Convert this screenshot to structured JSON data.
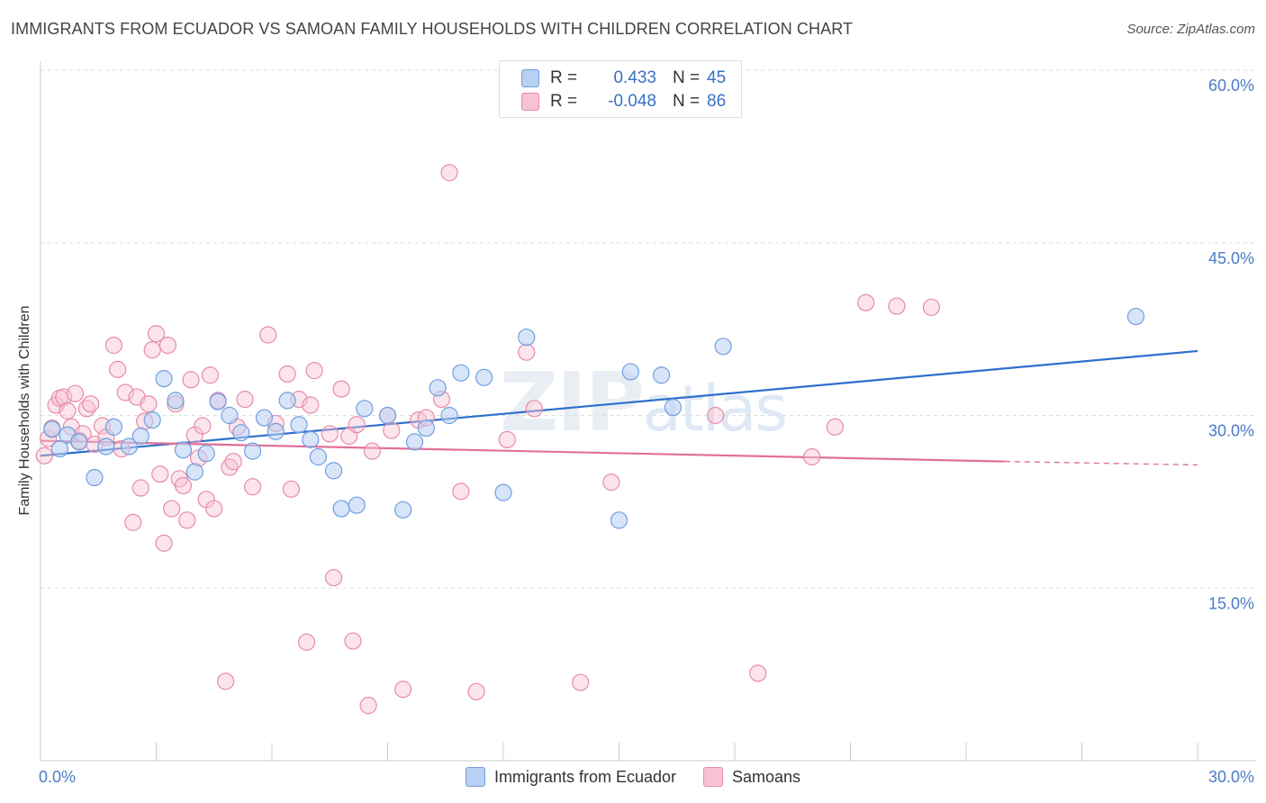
{
  "header": {
    "title": "IMMIGRANTS FROM ECUADOR VS SAMOAN FAMILY HOUSEHOLDS WITH CHILDREN CORRELATION CHART",
    "source": "Source: ZipAtlas.com"
  },
  "watermark": {
    "zip": "ZIP",
    "atlas": "atlas"
  },
  "legend": {
    "rows": [
      {
        "r_label": "R =",
        "r_value": "0.433",
        "n_label": "N =",
        "n_value": "45"
      },
      {
        "r_label": "R =",
        "r_value": "-0.048",
        "n_label": "N =",
        "n_value": "86"
      }
    ]
  },
  "bottom_legend": {
    "series1": "Immigrants from Ecuador",
    "series2": "Samoans"
  },
  "colors": {
    "blue_fill": "#b8d0f2",
    "blue_stroke": "#6f9fe0",
    "blue_line": "#2f6fcc",
    "pink_fill": "#f7c3d4",
    "pink_stroke": "#e98aab",
    "pink_line": "#e07098",
    "axis_label": "#4a7cc7",
    "grid": "#dddddd"
  },
  "chart_data": {
    "type": "scatter",
    "title": "IMMIGRANTS FROM ECUADOR VS SAMOAN FAMILY HOUSEHOLDS WITH CHILDREN CORRELATION CHART",
    "xlabel": "",
    "ylabel": "Family Households with Children",
    "xlim": [
      0,
      30
    ],
    "ylim": [
      0,
      60
    ],
    "x_tick_labels": [
      "0.0%",
      "30.0%"
    ],
    "y_ticks": [
      15,
      30,
      45,
      60
    ],
    "y_tick_labels": [
      "15.0%",
      "30.0%",
      "45.0%",
      "60.0%"
    ],
    "grid": true,
    "legend_position": "top-center",
    "series": [
      {
        "name": "Immigrants from Ecuador",
        "trend": {
          "x": [
            0,
            30
          ],
          "y": [
            26.5,
            35.6
          ]
        },
        "points": [
          [
            0.3,
            28.8
          ],
          [
            0.5,
            27.1
          ],
          [
            0.7,
            28.3
          ],
          [
            1.0,
            27.7
          ],
          [
            1.4,
            24.6
          ],
          [
            1.7,
            27.3
          ],
          [
            1.9,
            29.0
          ],
          [
            2.3,
            27.3
          ],
          [
            2.6,
            28.2
          ],
          [
            2.9,
            29.6
          ],
          [
            3.2,
            33.2
          ],
          [
            3.5,
            31.3
          ],
          [
            3.7,
            27.0
          ],
          [
            4.0,
            25.1
          ],
          [
            4.3,
            26.7
          ],
          [
            4.6,
            31.2
          ],
          [
            4.9,
            30.0
          ],
          [
            5.2,
            28.5
          ],
          [
            5.5,
            26.9
          ],
          [
            5.8,
            29.8
          ],
          [
            6.1,
            28.6
          ],
          [
            6.4,
            31.3
          ],
          [
            6.7,
            29.2
          ],
          [
            7.0,
            27.9
          ],
          [
            7.2,
            26.4
          ],
          [
            7.6,
            25.2
          ],
          [
            7.8,
            21.9
          ],
          [
            8.2,
            22.2
          ],
          [
            8.4,
            30.6
          ],
          [
            9.0,
            30.0
          ],
          [
            9.4,
            21.8
          ],
          [
            9.7,
            27.7
          ],
          [
            10.0,
            28.9
          ],
          [
            10.3,
            32.4
          ],
          [
            10.6,
            30.0
          ],
          [
            10.9,
            33.7
          ],
          [
            11.5,
            33.3
          ],
          [
            12.0,
            23.3
          ],
          [
            12.6,
            36.8
          ],
          [
            15.0,
            20.9
          ],
          [
            15.3,
            33.8
          ],
          [
            16.1,
            33.5
          ],
          [
            16.4,
            30.7
          ],
          [
            17.7,
            36.0
          ],
          [
            28.4,
            38.6
          ]
        ]
      },
      {
        "name": "Samoans",
        "trend_solid": {
          "x": [
            0,
            25
          ],
          "y": [
            27.8,
            26.0
          ]
        },
        "trend_dashed": {
          "x": [
            25,
            30
          ],
          "y": [
            26.0,
            25.7
          ]
        },
        "points": [
          [
            0.1,
            26.5
          ],
          [
            0.2,
            28.0
          ],
          [
            0.3,
            28.9
          ],
          [
            0.4,
            30.9
          ],
          [
            0.5,
            31.5
          ],
          [
            0.6,
            31.6
          ],
          [
            0.7,
            30.4
          ],
          [
            0.8,
            29.0
          ],
          [
            0.9,
            31.9
          ],
          [
            1.0,
            27.8
          ],
          [
            1.1,
            28.4
          ],
          [
            1.2,
            30.6
          ],
          [
            1.3,
            31.0
          ],
          [
            1.4,
            27.5
          ],
          [
            1.6,
            29.1
          ],
          [
            1.7,
            28.1
          ],
          [
            1.9,
            36.1
          ],
          [
            2.0,
            34.0
          ],
          [
            2.1,
            27.1
          ],
          [
            2.2,
            32.0
          ],
          [
            2.4,
            20.7
          ],
          [
            2.5,
            31.6
          ],
          [
            2.6,
            23.7
          ],
          [
            2.7,
            29.5
          ],
          [
            2.8,
            31.0
          ],
          [
            2.9,
            35.7
          ],
          [
            3.0,
            37.1
          ],
          [
            3.1,
            24.9
          ],
          [
            3.2,
            18.9
          ],
          [
            3.3,
            36.1
          ],
          [
            3.4,
            21.9
          ],
          [
            3.5,
            31.0
          ],
          [
            3.6,
            24.5
          ],
          [
            3.7,
            23.9
          ],
          [
            3.8,
            20.9
          ],
          [
            3.9,
            33.1
          ],
          [
            4.0,
            28.3
          ],
          [
            4.1,
            26.3
          ],
          [
            4.2,
            29.1
          ],
          [
            4.3,
            22.7
          ],
          [
            4.4,
            33.5
          ],
          [
            4.5,
            21.9
          ],
          [
            4.6,
            31.3
          ],
          [
            4.8,
            6.9
          ],
          [
            4.9,
            25.5
          ],
          [
            5.0,
            26.0
          ],
          [
            5.1,
            29.0
          ],
          [
            5.3,
            31.4
          ],
          [
            5.5,
            23.8
          ],
          [
            5.9,
            37.0
          ],
          [
            6.1,
            29.3
          ],
          [
            6.4,
            33.6
          ],
          [
            6.5,
            23.6
          ],
          [
            6.7,
            31.4
          ],
          [
            6.9,
            10.3
          ],
          [
            7.0,
            30.9
          ],
          [
            7.1,
            33.9
          ],
          [
            7.5,
            28.4
          ],
          [
            7.6,
            15.9
          ],
          [
            7.8,
            32.3
          ],
          [
            8.0,
            28.2
          ],
          [
            8.1,
            10.4
          ],
          [
            8.2,
            29.2
          ],
          [
            8.5,
            4.8
          ],
          [
            8.6,
            26.9
          ],
          [
            9.0,
            30.0
          ],
          [
            9.1,
            28.7
          ],
          [
            9.4,
            6.2
          ],
          [
            9.8,
            29.6
          ],
          [
            10.0,
            29.8
          ],
          [
            10.4,
            31.4
          ],
          [
            10.6,
            51.1
          ],
          [
            10.9,
            23.4
          ],
          [
            11.3,
            6.0
          ],
          [
            12.1,
            27.9
          ],
          [
            12.6,
            35.5
          ],
          [
            12.8,
            30.6
          ],
          [
            14.0,
            6.8
          ],
          [
            14.8,
            24.2
          ],
          [
            17.5,
            30.0
          ],
          [
            18.6,
            7.6
          ],
          [
            20.0,
            26.4
          ],
          [
            20.6,
            29.0
          ],
          [
            21.4,
            39.8
          ],
          [
            22.2,
            39.5
          ],
          [
            23.1,
            39.4
          ]
        ]
      }
    ]
  }
}
